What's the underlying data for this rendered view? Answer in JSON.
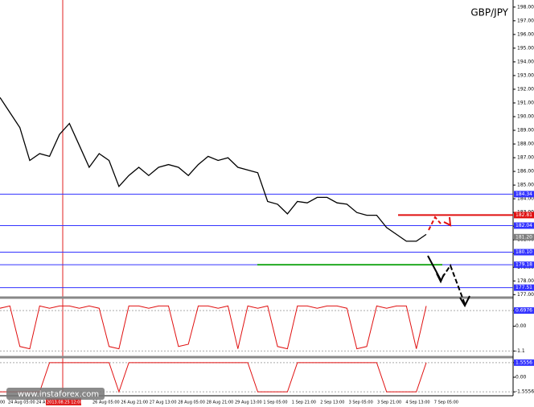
{
  "chart_data": {
    "type": "line",
    "title": "GBP/JPY",
    "watermark": "www.instaforex.com",
    "x_labels": [
      "00",
      "24 Aug 05:00",
      "24 A",
      "2013.08.25 12:00",
      "26 Aug 05:00",
      "26 Aug 21:00",
      "27 Aug 13:00",
      "28 Aug 05:00",
      "28 Aug 21:00",
      "29 Aug 13:00",
      "1 Sep 05:00",
      "1 Sep 21:00",
      "2 Sep 13:00",
      "3 Sep 05:00",
      "3 Sep 21:00",
      "4 Sep 13:00",
      "7 Sep 05:00"
    ],
    "series": [
      {
        "name": "GBP/JPY",
        "color": "#000000",
        "values": [
          191.4,
          190.3,
          189.2,
          186.8,
          187.3,
          187.1,
          188.7,
          189.5,
          187.9,
          186.3,
          187.3,
          186.8,
          184.9,
          185.7,
          186.3,
          185.7,
          186.3,
          186.5,
          186.3,
          185.7,
          186.5,
          187.1,
          186.8,
          187.0,
          186.3,
          186.1,
          185.9,
          183.8,
          183.6,
          182.9,
          183.8,
          183.7,
          184.1,
          184.1,
          183.7,
          183.6,
          183.0,
          182.8,
          182.8,
          181.9,
          181.4,
          180.9,
          180.9,
          181.4
        ]
      }
    ],
    "ylim": [
      176.9,
      198.4
    ],
    "yticks": [
      {
        "value": 177,
        "label": "177.00"
      },
      {
        "value": 178,
        "label": "178.00"
      },
      {
        "value": 179,
        "label": "179.00"
      },
      {
        "value": 180,
        "label": "180.00"
      },
      {
        "value": 181,
        "label": "181.00"
      },
      {
        "value": 182,
        "label": "182.00"
      },
      {
        "value": 183,
        "label": "183.00"
      },
      {
        "value": 184,
        "label": "184.00"
      },
      {
        "value": 185,
        "label": "185.00"
      },
      {
        "value": 186,
        "label": "186.00"
      },
      {
        "value": 187,
        "label": "187.00"
      },
      {
        "value": 188,
        "label": "188.00"
      },
      {
        "value": 189,
        "label": "189.00"
      },
      {
        "value": 190,
        "label": "190.00"
      },
      {
        "value": 191,
        "label": "191.00"
      },
      {
        "value": 192,
        "label": "192.00"
      },
      {
        "value": 193,
        "label": "193.00"
      },
      {
        "value": 194,
        "label": "194.00"
      },
      {
        "value": 195,
        "label": "195.00"
      },
      {
        "value": 196,
        "label": "196.00"
      },
      {
        "value": 197,
        "label": "197.00"
      },
      {
        "value": 198,
        "label": "198.00"
      }
    ],
    "levels": [
      {
        "value": 184.34,
        "label": "184.34",
        "color": "#3333ff"
      },
      {
        "value": 182.81,
        "label": "182.81",
        "color": "#e01010"
      },
      {
        "value": 182.04,
        "label": "182.04",
        "color": "#3333ff"
      },
      {
        "value": 181.2,
        "label": "181.20",
        "color": "#808080"
      },
      {
        "value": 180.1,
        "label": "180.10",
        "color": "#3333ff"
      },
      {
        "value": 179.18,
        "label": "179.18",
        "color": "#3333ff"
      },
      {
        "value": 177.51,
        "label": "177.51",
        "color": "#3333ff"
      }
    ],
    "support_color": "#22aa22",
    "indicators": [
      {
        "color": "#e01010",
        "ylim": [
          -1.3,
          1.2
        ],
        "yticks": [
          {
            "value": 0.6976,
            "label": "0.6976"
          },
          {
            "value": 0,
            "label": "0.00"
          },
          {
            "value": -1.1,
            "label": "-1.1"
          }
        ],
        "values": [
          0.8,
          0.9,
          -0.9,
          -1.0,
          0.9,
          0.8,
          0.9,
          0.9,
          0.8,
          0.9,
          0.8,
          -0.9,
          -1.0,
          0.9,
          0.9,
          0.8,
          0.9,
          0.9,
          -0.9,
          -0.8,
          0.9,
          0.9,
          0.8,
          0.9,
          -1.0,
          0.9,
          0.8,
          0.9,
          -0.9,
          -1.0,
          0.9,
          0.9,
          0.8,
          0.9,
          0.9,
          0.8,
          -1.0,
          -0.9,
          0.9,
          0.8,
          0.9,
          0.9,
          -1.0,
          0.9
        ]
      },
      {
        "color": "#e01010",
        "ylim": [
          -1.8,
          1.8
        ],
        "yticks": [
          {
            "value": 1.5556,
            "label": "1.5556"
          },
          {
            "value": 0,
            "label": "0.00"
          },
          {
            "value": -1.5556,
            "label": "-1.5556"
          }
        ],
        "values": [
          -1.5556,
          -1.5556,
          -1.5556,
          -1.5556,
          -1.5556,
          1.5556,
          1.5556,
          1.5556,
          1.5556,
          1.5556,
          1.5556,
          1.5556,
          -1.5556,
          1.5556,
          1.5556,
          1.5556,
          1.5556,
          1.5556,
          1.5556,
          1.5556,
          1.5556,
          1.5556,
          1.5556,
          1.5556,
          1.5556,
          1.5556,
          -1.5556,
          -1.5556,
          -1.5556,
          -1.5556,
          1.5556,
          1.5556,
          1.5556,
          1.5556,
          1.5556,
          1.5556,
          1.5556,
          1.5556,
          1.5556,
          -1.5556,
          -1.5556,
          -1.5556,
          -1.5556,
          1.5556
        ]
      }
    ]
  }
}
